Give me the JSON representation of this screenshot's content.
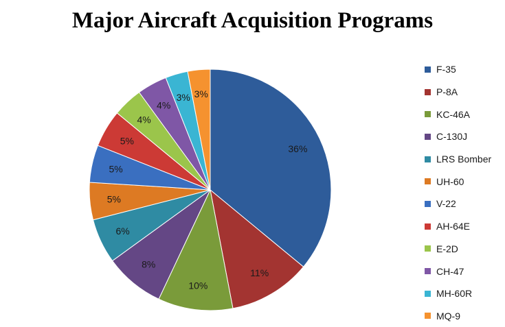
{
  "chart_data": {
    "type": "pie",
    "title": "Major Aircraft Acquisition Programs",
    "legend_position": "right",
    "slices": [
      {
        "label": "F-35",
        "value": 36,
        "value_label": "36%",
        "color": "#2E5C9A"
      },
      {
        "label": "P-8A",
        "value": 11,
        "value_label": "11%",
        "color": "#A33431"
      },
      {
        "label": "KC-46A",
        "value": 10,
        "value_label": "10%",
        "color": "#7A9B3A"
      },
      {
        "label": "C-130J",
        "value": 8,
        "value_label": "8%",
        "color": "#644785"
      },
      {
        "label": "LRS Bomber",
        "value": 6,
        "value_label": "6%",
        "color": "#2F8BA3"
      },
      {
        "label": "UH-60",
        "value": 5,
        "value_label": "5%",
        "color": "#DD7A23"
      },
      {
        "label": "V-22",
        "value": 5,
        "value_label": "5%",
        "color": "#3A6FC0"
      },
      {
        "label": "AH-64E",
        "value": 5,
        "value_label": "5%",
        "color": "#CC3A35"
      },
      {
        "label": "E-2D",
        "value": 4,
        "value_label": "4%",
        "color": "#9BC54B"
      },
      {
        "label": "CH-47",
        "value": 4,
        "value_label": "4%",
        "color": "#7F57A6"
      },
      {
        "label": "MH-60R",
        "value": 3,
        "value_label": "3%",
        "color": "#3AB5D3"
      },
      {
        "label": "MQ-9",
        "value": 3,
        "value_label": "3%",
        "color": "#F5922F"
      }
    ]
  }
}
